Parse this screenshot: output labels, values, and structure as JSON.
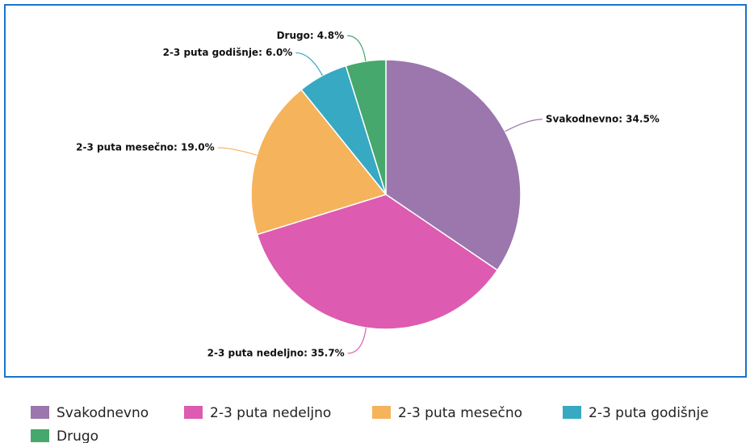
{
  "chart_data": {
    "type": "pie",
    "categories": [
      "Svakodnevno",
      "2-3 puta nedeljno",
      "2-3 puta mesečno",
      "2-3 puta godišnje",
      "Drugo"
    ],
    "values": [
      34.5,
      35.7,
      19.0,
      6.0,
      4.8
    ],
    "value_labels": [
      "Svakodnevno: 34.5%",
      "2-3 puta nedeljno: 35.7%",
      "2-3 puta mesečno: 19.0%",
      "2-3 puta godišnje: 6.0%",
      "Drugo: 4.8%"
    ],
    "colors": [
      "#9b77ad",
      "#dd5bb0",
      "#f5b35c",
      "#37a9c2",
      "#46a86c"
    ],
    "legend": "bottom"
  }
}
